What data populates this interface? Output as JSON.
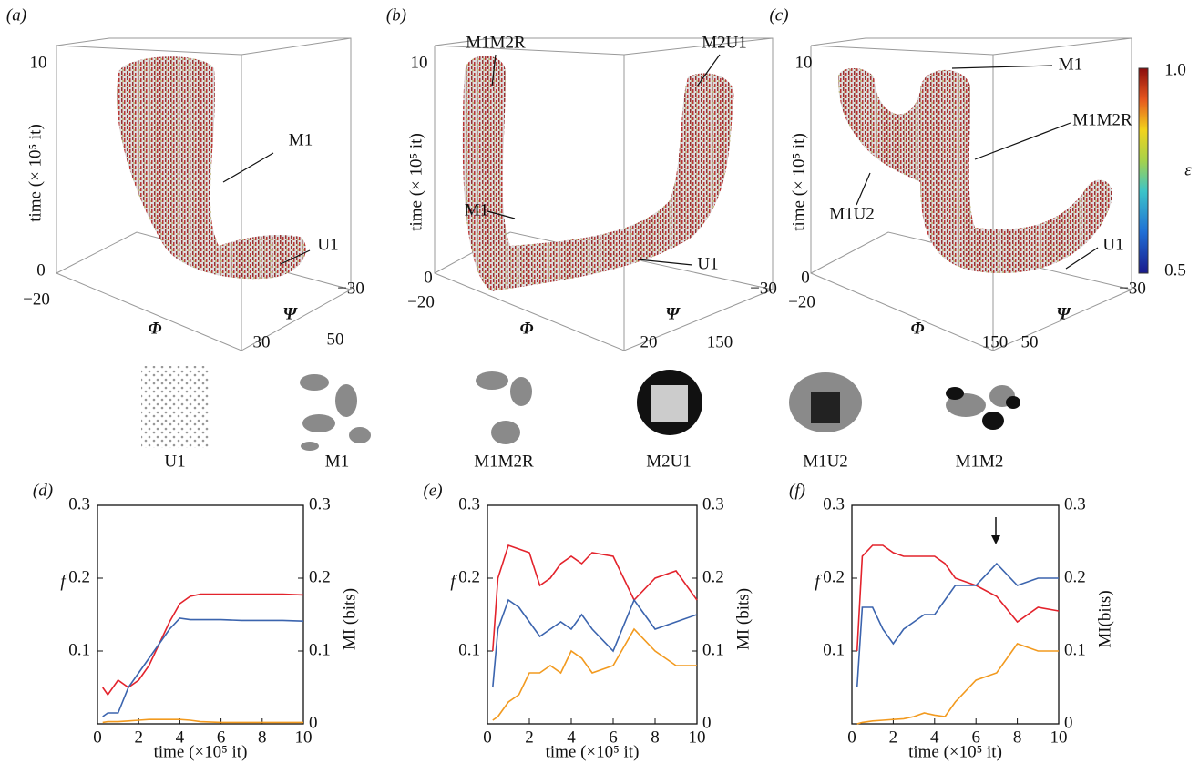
{
  "panels_3d": [
    {
      "label": "(a)",
      "z_label": "time (× 10⁵ it)",
      "z_ticks": [
        "10",
        "0"
      ],
      "phi_label": "Φ",
      "phi_ticks": [
        "−20",
        "50"
      ],
      "psi_label": "Ψ",
      "psi_ticks": [
        "30",
        "−30"
      ],
      "annotations": [
        "M1",
        "U1"
      ]
    },
    {
      "label": "(b)",
      "z_label": "time (× 10⁵ it)",
      "z_ticks": [
        "10",
        "0"
      ],
      "phi_label": "Φ",
      "phi_ticks": [
        "−20",
        "150"
      ],
      "psi_label": "Ψ",
      "psi_ticks": [
        "20",
        "−30"
      ],
      "annotations": [
        "M1M2R",
        "M2U1",
        "M1",
        "U1"
      ]
    },
    {
      "label": "(c)",
      "z_label": "time (× 10⁵ it)",
      "z_ticks": [
        "10",
        "0"
      ],
      "phi_label": "Φ",
      "phi_ticks": [
        "−20",
        "150"
      ],
      "psi_label": "Ψ",
      "psi_ticks": [
        "50",
        "−30"
      ],
      "annotations": [
        "M1",
        "M1M2R",
        "M1U2",
        "U1"
      ]
    }
  ],
  "colorbar": {
    "top": "1.0",
    "bottom": "0.5",
    "label": "ε"
  },
  "patterns": [
    "U1",
    "M1",
    "M1M2R",
    "M2U1",
    "M1U2",
    "M1M2"
  ],
  "chart_data": [
    {
      "type": "line",
      "label": "(d)",
      "ylabel": "f",
      "y2label": "MI (bits)",
      "xlabel": "time (×10⁵ it)",
      "x": [
        0.25,
        0.5,
        1,
        1.5,
        2,
        2.5,
        3,
        3.5,
        4,
        4.5,
        5,
        6,
        7,
        8,
        9,
        10
      ],
      "xlim": [
        0,
        10
      ],
      "xticks": [
        0,
        2,
        4,
        6,
        8,
        10
      ],
      "ylim": [
        0,
        0.3
      ],
      "yticks": [
        0.1,
        0.2,
        0.3
      ],
      "y2lim": [
        0,
        0.3
      ],
      "y2ticks": [
        0,
        0.1,
        0.2,
        0.3
      ],
      "series": [
        {
          "color": "#e3232c",
          "values": [
            0.05,
            0.04,
            0.06,
            0.05,
            0.06,
            0.08,
            0.11,
            0.14,
            0.165,
            0.175,
            0.178,
            0.178,
            0.178,
            0.178,
            0.178,
            0.177
          ]
        },
        {
          "color": "#3b64ae",
          "axis": "y2",
          "values": [
            0.01,
            0.015,
            0.015,
            0.05,
            0.07,
            0.09,
            0.11,
            0.13,
            0.145,
            0.143,
            0.143,
            0.143,
            0.142,
            0.142,
            0.142,
            0.141
          ]
        },
        {
          "color": "#f29a1f",
          "axis": "y2",
          "values": [
            0.002,
            0.003,
            0.003,
            0.004,
            0.005,
            0.006,
            0.006,
            0.006,
            0.006,
            0.005,
            0.003,
            0.002,
            0.002,
            0.002,
            0.002,
            0.002
          ]
        }
      ]
    },
    {
      "type": "line",
      "label": "(e)",
      "ylabel": "f",
      "y2label": "MI (bits)",
      "xlabel": "time (×10⁵ it)",
      "x": [
        0.25,
        0.5,
        1,
        1.5,
        2,
        2.5,
        3,
        3.5,
        4,
        4.5,
        5,
        6,
        7,
        8,
        9,
        10
      ],
      "xlim": [
        0,
        10
      ],
      "xticks": [
        0,
        2,
        4,
        6,
        8,
        10
      ],
      "ylim": [
        0,
        0.3
      ],
      "yticks": [
        0.1,
        0.2,
        0.3
      ],
      "y2lim": [
        0,
        0.3
      ],
      "y2ticks": [
        0,
        0.1,
        0.2,
        0.3
      ],
      "series": [
        {
          "color": "#e3232c",
          "values": [
            0.1,
            0.2,
            0.245,
            0.24,
            0.235,
            0.19,
            0.2,
            0.22,
            0.23,
            0.22,
            0.235,
            0.23,
            0.17,
            0.2,
            0.21,
            0.17
          ]
        },
        {
          "color": "#3b64ae",
          "axis": "y2",
          "values": [
            0.05,
            0.13,
            0.17,
            0.16,
            0.14,
            0.12,
            0.13,
            0.14,
            0.13,
            0.15,
            0.13,
            0.1,
            0.17,
            0.13,
            0.14,
            0.15
          ]
        },
        {
          "color": "#f29a1f",
          "axis": "y2",
          "values": [
            0.005,
            0.01,
            0.03,
            0.04,
            0.07,
            0.07,
            0.08,
            0.07,
            0.1,
            0.09,
            0.07,
            0.08,
            0.13,
            0.1,
            0.08,
            0.08
          ]
        }
      ]
    },
    {
      "type": "line",
      "label": "(f)",
      "ylabel": "f",
      "y2label": "MI(bits)",
      "xlabel": "time (×10⁵ it)",
      "x": [
        0.25,
        0.5,
        1,
        1.5,
        2,
        2.5,
        3,
        3.5,
        4,
        4.5,
        5,
        6,
        7,
        8,
        9,
        10
      ],
      "xlim": [
        0,
        10
      ],
      "xticks": [
        0,
        2,
        4,
        6,
        8,
        10
      ],
      "ylim": [
        0,
        0.3
      ],
      "yticks": [
        0.1,
        0.2,
        0.3
      ],
      "y2lim": [
        0,
        0.3
      ],
      "y2ticks": [
        0,
        0.1,
        0.2,
        0.3
      ],
      "series": [
        {
          "color": "#e3232c",
          "values": [
            0.1,
            0.23,
            0.245,
            0.245,
            0.235,
            0.23,
            0.23,
            0.23,
            0.23,
            0.22,
            0.2,
            0.19,
            0.175,
            0.14,
            0.16,
            0.155
          ]
        },
        {
          "color": "#3b64ae",
          "axis": "y2",
          "values": [
            0.05,
            0.16,
            0.16,
            0.13,
            0.11,
            0.13,
            0.14,
            0.15,
            0.15,
            0.17,
            0.19,
            0.19,
            0.22,
            0.19,
            0.2,
            0.2
          ]
        },
        {
          "color": "#f29a1f",
          "axis": "y2",
          "values": [
            0,
            0.002,
            0.004,
            0.005,
            0.006,
            0.007,
            0.01,
            0.015,
            0.012,
            0.01,
            0.03,
            0.06,
            0.07,
            0.11,
            0.1,
            0.1
          ]
        }
      ]
    }
  ]
}
